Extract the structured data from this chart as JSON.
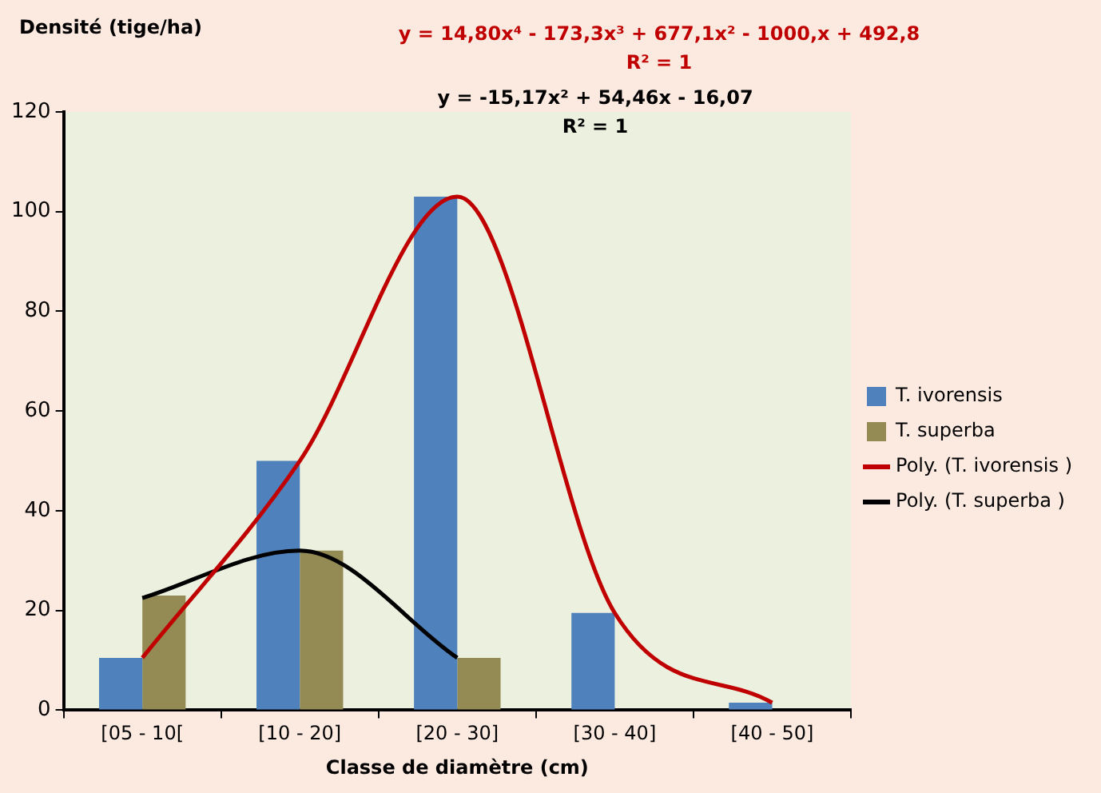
{
  "chart_data": {
    "type": "bar",
    "ylabel": "Densité (tige/ha)",
    "xlabel": "Classe de diamètre (cm)",
    "categories": [
      "[05 - 10[",
      "[10 - 20]",
      "[20 - 30]",
      "[30 - 40]",
      "[40 - 50]"
    ],
    "series": [
      {
        "name": "T. ivorensis",
        "color": "#4f81bd",
        "values": [
          10.5,
          50,
          103,
          19.5,
          1.5
        ]
      },
      {
        "name": "T. superba",
        "color": "#948a54",
        "values": [
          23,
          32,
          10.5,
          null,
          null
        ]
      },
      {
        "name": "Poly. (T. ivorensis )",
        "type": "line",
        "color": "#c00000",
        "values": [
          10.5,
          50,
          103,
          19.5,
          1.5
        ]
      },
      {
        "name": "Poly. (T. superba )",
        "type": "line",
        "color": "#000000",
        "values": [
          22.5,
          32,
          10.5,
          null,
          null
        ]
      }
    ],
    "annotations": [
      "y = 14,80x⁴ - 173,3x³ + 677,1x² - 1000,x + 492,8\nR² = 1",
      "y = -15,17x² + 54,46x - 16,07\nR² = 1"
    ],
    "ylim": [
      0,
      120
    ],
    "yticks": [
      0,
      20,
      40,
      60,
      80,
      100,
      120
    ],
    "grid": false,
    "legend": "right",
    "marker": "none",
    "line_style": "solid"
  }
}
